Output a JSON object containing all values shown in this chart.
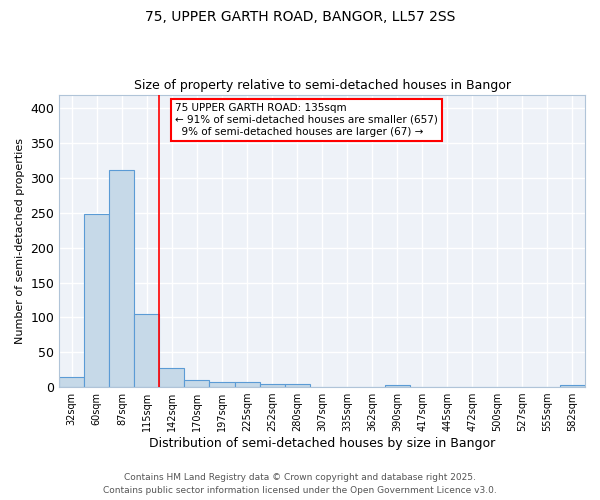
{
  "title1": "75, UPPER GARTH ROAD, BANGOR, LL57 2SS",
  "title2": "Size of property relative to semi-detached houses in Bangor",
  "xlabel": "Distribution of semi-detached houses by size in Bangor",
  "ylabel": "Number of semi-detached properties",
  "categories": [
    "32sqm",
    "60sqm",
    "87sqm",
    "115sqm",
    "142sqm",
    "170sqm",
    "197sqm",
    "225sqm",
    "252sqm",
    "280sqm",
    "307sqm",
    "335sqm",
    "362sqm",
    "390sqm",
    "417sqm",
    "445sqm",
    "472sqm",
    "500sqm",
    "527sqm",
    "555sqm",
    "582sqm"
  ],
  "values": [
    15,
    248,
    312,
    105,
    28,
    10,
    7,
    7,
    4,
    4,
    0,
    0,
    0,
    3,
    0,
    0,
    0,
    0,
    0,
    0,
    3
  ],
  "bar_color": "#c6d9e8",
  "bar_edge_color": "#5b9bd5",
  "red_line_x": 3.5,
  "annotation_line1": "75 UPPER GARTH ROAD: 135sqm",
  "annotation_line2": "← 91% of semi-detached houses are smaller (657)",
  "annotation_line3": "  9% of semi-detached houses are larger (67) →",
  "annotation_box_color": "white",
  "annotation_box_edge": "red",
  "footer1": "Contains HM Land Registry data © Crown copyright and database right 2025.",
  "footer2": "Contains public sector information licensed under the Open Government Licence v3.0.",
  "ylim": [
    0,
    420
  ],
  "background_color": "#eef2f8",
  "grid_color": "white"
}
